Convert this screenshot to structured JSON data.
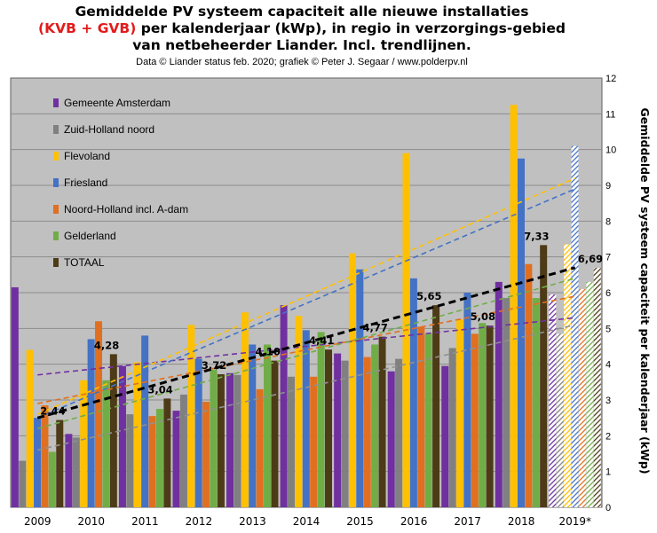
{
  "title": {
    "line1": "Gemiddelde PV systeem capaciteit alle nieuwe installaties",
    "line2_red": "(KVB + GVB)",
    "line2_rest": " per kalenderjaar (kWp), in regio in verzorgings-gebied",
    "line3": "van netbeheerder Liander. Incl. trendlijnen."
  },
  "subtitle": "Data © Liander status feb. 2020; grafiek © Peter J. Segaar / www.polderpv.nl",
  "colors": {
    "plot_bg": "#c0c0c0",
    "grid": "#8c8c8c"
  },
  "chart_data": {
    "type": "bar",
    "categories": [
      "2009",
      "2010",
      "2011",
      "2012",
      "2013",
      "2014",
      "2015",
      "2016",
      "2017",
      "2018",
      "2019*"
    ],
    "hatched_category": "2019*",
    "xlabel": "",
    "ylabel": "Gemiddelde PV systeem capaciteit per kalenderjaar (kWp)",
    "y_axis_side": "right",
    "ylim": [
      0,
      12
    ],
    "yticks": [
      0,
      1,
      2,
      3,
      4,
      5,
      6,
      7,
      8,
      9,
      10,
      11,
      12
    ],
    "grid": true,
    "legend_position": "top-left",
    "series": [
      {
        "name": "Gemeente Amsterdam",
        "color": "#7030a0",
        "values": [
          6.15,
          2.05,
          3.95,
          2.7,
          3.75,
          5.65,
          4.3,
          3.8,
          3.95,
          6.3,
          5.95
        ]
      },
      {
        "name": "Zuid-Holland noord",
        "color": "#808080",
        "values": [
          1.3,
          1.95,
          2.6,
          3.15,
          3.7,
          3.65,
          4.1,
          4.15,
          4.45,
          5.85,
          4.85
        ]
      },
      {
        "name": "Flevoland",
        "color": "#ffc000",
        "values": [
          4.4,
          3.55,
          4.05,
          5.1,
          5.45,
          5.35,
          7.1,
          9.9,
          5.25,
          11.25,
          7.35
        ]
      },
      {
        "name": "Friesland",
        "color": "#4472c4",
        "values": [
          2.5,
          4.7,
          4.8,
          4.15,
          4.55,
          4.95,
          6.65,
          6.4,
          6.0,
          9.75,
          10.1
        ]
      },
      {
        "name": "Noord-Holland incl. A-dam",
        "color": "#e07020",
        "values": [
          2.85,
          5.2,
          2.55,
          2.95,
          3.3,
          3.65,
          4.2,
          5.05,
          4.85,
          6.8,
          6.1
        ]
      },
      {
        "name": "Gelderland",
        "color": "#70ad47",
        "values": [
          1.55,
          3.55,
          2.75,
          3.85,
          4.55,
          4.9,
          4.55,
          4.85,
          5.15,
          5.85,
          6.3
        ]
      },
      {
        "name": "TOTAAL",
        "color": "#4d3b17",
        "values": [
          2.44,
          4.28,
          3.04,
          3.72,
          4.1,
          4.41,
          4.77,
          5.65,
          5.08,
          7.33,
          6.69
        ]
      }
    ],
    "data_labels": {
      "series": "TOTAAL",
      "labels": [
        "2,44",
        "4,28",
        "3,04",
        "3,72",
        "4,10",
        "4,41",
        "4,77",
        "5,65",
        "5,08",
        "7,33",
        "6,69"
      ]
    },
    "trendlines": [
      {
        "series": "Gemeente Amsterdam",
        "color": "#7030a0",
        "style": "dashed",
        "start": 3.7,
        "end": 5.3
      },
      {
        "series": "Zuid-Holland noord",
        "color": "#909090",
        "style": "dashed",
        "start": 1.6,
        "end": 5.1
      },
      {
        "series": "Flevoland",
        "color": "#ffc000",
        "style": "dashed",
        "start": 2.6,
        "end": 9.2
      },
      {
        "series": "Friesland",
        "color": "#4472c4",
        "style": "dashed",
        "start": 2.5,
        "end": 8.9
      },
      {
        "series": "Noord-Holland incl. A-dam",
        "color": "#e07020",
        "style": "dashed",
        "start": 2.9,
        "end": 5.9
      },
      {
        "series": "Gelderland",
        "color": "#70ad47",
        "style": "dashed",
        "start": 2.2,
        "end": 6.4
      },
      {
        "series": "TOTAAL",
        "color": "#000000",
        "style": "dashed-bold",
        "start": 2.5,
        "end": 6.7
      }
    ]
  }
}
